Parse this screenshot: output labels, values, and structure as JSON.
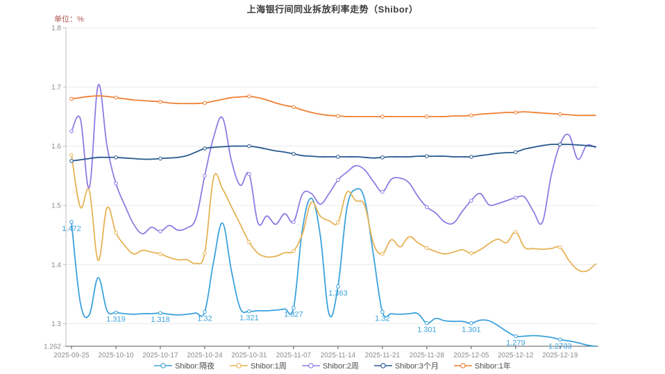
{
  "title": "上海银行间同业拆放利率走势（Shibor）",
  "unit_label": "单位：%",
  "chart_data": {
    "type": "line",
    "smooth": true,
    "grid": true,
    "legend_position": "bottom",
    "ylim": [
      1.262,
      1.8
    ],
    "y_ticks": [
      1.8,
      1.7,
      1.6,
      1.5,
      1.4,
      1.3,
      1.262
    ],
    "x_tick_every": 5,
    "marker_every": 5,
    "categories": [
      "2025-09-25",
      "2025-09-26",
      "2025-09-29",
      "2025-09-30",
      "2025-10-09",
      "2025-10-10",
      "2025-10-13",
      "2025-10-14",
      "2025-10-15",
      "2025-10-16",
      "2025-10-17",
      "2025-10-20",
      "2025-10-21",
      "2025-10-22",
      "2025-10-23",
      "2025-10-24",
      "2025-10-27",
      "2025-10-28",
      "2025-10-29",
      "2025-10-30",
      "2025-10-31",
      "2025-11-03",
      "2025-11-04",
      "2025-11-05",
      "2025-11-06",
      "2025-11-07",
      "2025-11-10",
      "2025-11-11",
      "2025-11-12",
      "2025-11-13",
      "2025-11-14",
      "2025-11-17",
      "2025-11-18",
      "2025-11-19",
      "2025-11-20",
      "2025-11-21",
      "2025-11-24",
      "2025-11-25",
      "2025-11-26",
      "2025-11-27",
      "2025-11-28",
      "2025-12-01",
      "2025-12-02",
      "2025-12-03",
      "2025-12-04",
      "2025-12-05",
      "2025-12-08",
      "2025-12-09",
      "2025-12-10",
      "2025-12-11",
      "2025-12-12",
      "2025-12-15",
      "2025-12-16",
      "2025-12-17",
      "2025-12-18",
      "2025-12-19",
      "2025-12-22",
      "2025-12-23",
      "2025-12-24",
      "2025-12-25"
    ],
    "series": [
      {
        "name": "Shibor:隔夜",
        "key": "overnight",
        "color": "#3aa1db",
        "values": [
          1.472,
          1.335,
          1.315,
          1.378,
          1.322,
          1.319,
          1.317,
          1.316,
          1.317,
          1.317,
          1.318,
          1.316,
          1.315,
          1.316,
          1.318,
          1.32,
          1.405,
          1.47,
          1.39,
          1.326,
          1.321,
          1.322,
          1.322,
          1.323,
          1.325,
          1.327,
          1.46,
          1.512,
          1.45,
          1.316,
          1.363,
          1.495,
          1.527,
          1.51,
          1.415,
          1.32,
          1.317,
          1.316,
          1.317,
          1.317,
          1.301,
          1.309,
          1.305,
          1.304,
          1.304,
          1.301,
          1.306,
          1.305,
          1.297,
          1.287,
          1.279,
          1.279,
          1.28,
          1.279,
          1.277,
          1.2733,
          1.271,
          1.268,
          1.264,
          1.262
        ],
        "point_labels": [
          {
            "index": 0,
            "text": "1.472"
          },
          {
            "index": 5,
            "text": "1.319"
          },
          {
            "index": 10,
            "text": "1.318"
          },
          {
            "index": 15,
            "text": "1.32"
          },
          {
            "index": 20,
            "text": "1.321"
          },
          {
            "index": 25,
            "text": "1.327"
          },
          {
            "index": 30,
            "text": "1.363"
          },
          {
            "index": 35,
            "text": "1.32"
          },
          {
            "index": 40,
            "text": "1.301"
          },
          {
            "index": 45,
            "text": "1.301"
          },
          {
            "index": 50,
            "text": "1.279"
          },
          {
            "index": 55,
            "text": "1.2733"
          }
        ]
      },
      {
        "name": "Shibor:1周",
        "key": "1w",
        "color": "#e6b254",
        "values": [
          1.585,
          1.497,
          1.525,
          1.407,
          1.496,
          1.454,
          1.432,
          1.418,
          1.424,
          1.421,
          1.418,
          1.412,
          1.408,
          1.408,
          1.402,
          1.419,
          1.547,
          1.528,
          1.498,
          1.468,
          1.438,
          1.419,
          1.413,
          1.414,
          1.42,
          1.423,
          1.452,
          1.505,
          1.482,
          1.474,
          1.471,
          1.522,
          1.508,
          1.5,
          1.435,
          1.418,
          1.442,
          1.43,
          1.447,
          1.437,
          1.428,
          1.422,
          1.418,
          1.421,
          1.425,
          1.419,
          1.425,
          1.435,
          1.443,
          1.437,
          1.455,
          1.429,
          1.427,
          1.426,
          1.427,
          1.429,
          1.407,
          1.391,
          1.389,
          1.401
        ],
        "point_labels": []
      },
      {
        "name": "Shibor:2周",
        "key": "2w",
        "color": "#8f7ae3",
        "values": [
          1.625,
          1.646,
          1.53,
          1.703,
          1.6,
          1.537,
          1.5,
          1.468,
          1.452,
          1.463,
          1.456,
          1.466,
          1.458,
          1.462,
          1.478,
          1.55,
          1.615,
          1.648,
          1.576,
          1.534,
          1.553,
          1.47,
          1.482,
          1.468,
          1.486,
          1.472,
          1.519,
          1.52,
          1.502,
          1.52,
          1.543,
          1.556,
          1.567,
          1.56,
          1.54,
          1.523,
          1.544,
          1.546,
          1.538,
          1.515,
          1.497,
          1.487,
          1.472,
          1.47,
          1.49,
          1.508,
          1.52,
          1.501,
          1.503,
          1.508,
          1.513,
          1.514,
          1.49,
          1.471,
          1.55,
          1.603,
          1.619,
          1.578,
          1.601,
          1.598
        ],
        "point_labels": []
      },
      {
        "name": "Shibor:3个月",
        "key": "3m",
        "color": "#27588e",
        "values": [
          1.575,
          1.577,
          1.579,
          1.581,
          1.581,
          1.581,
          1.58,
          1.579,
          1.578,
          1.578,
          1.579,
          1.58,
          1.581,
          1.584,
          1.59,
          1.596,
          1.598,
          1.599,
          1.6,
          1.6,
          1.6,
          1.598,
          1.595,
          1.592,
          1.59,
          1.587,
          1.584,
          1.583,
          1.582,
          1.582,
          1.582,
          1.582,
          1.582,
          1.581,
          1.58,
          1.581,
          1.582,
          1.582,
          1.582,
          1.583,
          1.583,
          1.583,
          1.583,
          1.582,
          1.582,
          1.582,
          1.584,
          1.586,
          1.588,
          1.589,
          1.59,
          1.595,
          1.598,
          1.601,
          1.603,
          1.603,
          1.603,
          1.602,
          1.601,
          1.599
        ],
        "point_labels": []
      },
      {
        "name": "Shibor:1年",
        "key": "1y",
        "color": "#ee7f33",
        "values": [
          1.68,
          1.682,
          1.684,
          1.685,
          1.684,
          1.682,
          1.68,
          1.678,
          1.677,
          1.676,
          1.675,
          1.673,
          1.672,
          1.672,
          1.672,
          1.673,
          1.676,
          1.679,
          1.682,
          1.683,
          1.684,
          1.682,
          1.678,
          1.673,
          1.669,
          1.666,
          1.661,
          1.657,
          1.654,
          1.652,
          1.651,
          1.65,
          1.65,
          1.65,
          1.65,
          1.65,
          1.65,
          1.65,
          1.65,
          1.65,
          1.65,
          1.65,
          1.65,
          1.651,
          1.651,
          1.652,
          1.654,
          1.655,
          1.656,
          1.657,
          1.657,
          1.658,
          1.657,
          1.656,
          1.655,
          1.654,
          1.653,
          1.652,
          1.652,
          1.652
        ],
        "point_labels": []
      }
    ]
  },
  "legend": [
    {
      "label": "Shibor:隔夜",
      "key": "overnight",
      "color": "#3aa1db"
    },
    {
      "label": "Shibor:1周",
      "key": "1w",
      "color": "#e6b254"
    },
    {
      "label": "Shibor:2周",
      "key": "2w",
      "color": "#8f7ae3"
    },
    {
      "label": "Shibor:3个月",
      "key": "3m",
      "color": "#27588e"
    },
    {
      "label": "Shibor:1年",
      "key": "1y",
      "color": "#ee7f33"
    }
  ],
  "colors": {
    "grid": "#e9e9e9",
    "y_axis_line": "#bbbbbb",
    "x_axis_line": "#555555",
    "axis_text": "#8a8a8a",
    "title_text": "#3c3c3c",
    "unit_text": "#b0544d"
  }
}
